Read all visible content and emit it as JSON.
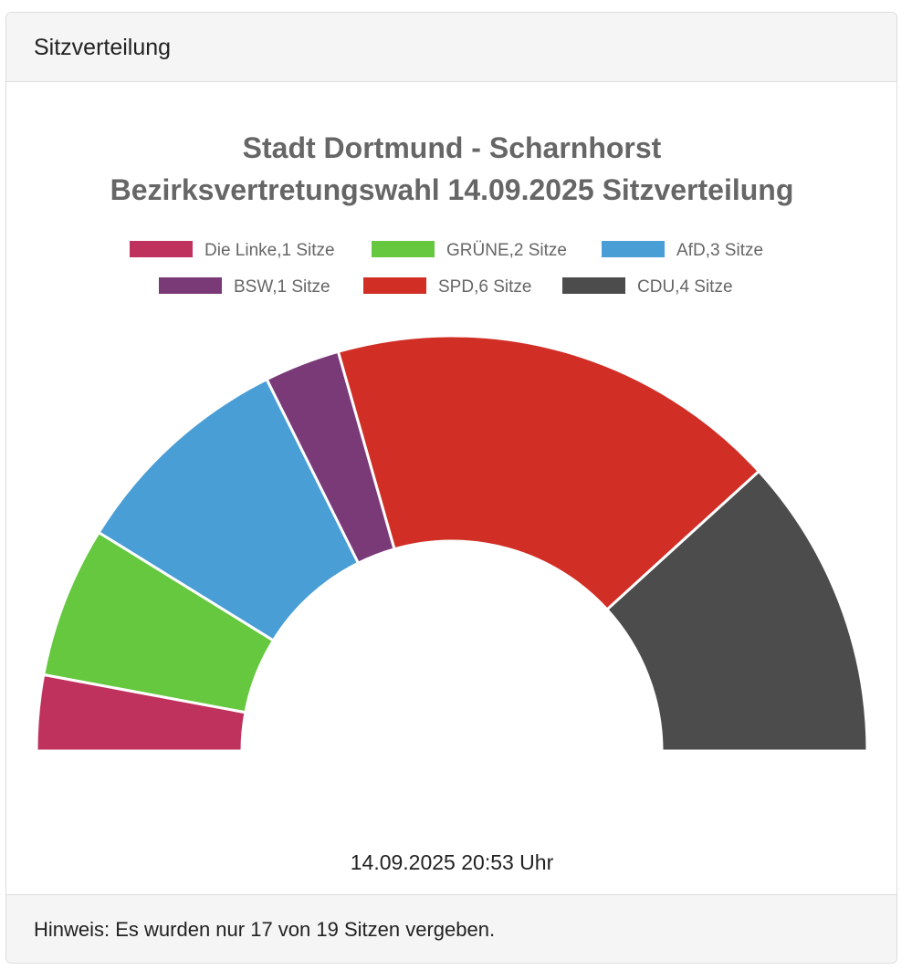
{
  "panel": {
    "heading": "Sitzverteilung",
    "footer": "Hinweis: Es wurden nur 17 von 19 Sitzen vergeben."
  },
  "chart_data": {
    "type": "pie",
    "variant": "semicircle-doughnut",
    "title_lines": [
      "Stadt Dortmund - Scharnhorst",
      "Bezirksvertretungswahl 14.09.2025 Sitzverteilung"
    ],
    "legend": {
      "placement": "top",
      "labels": [
        "Die Linke,1 Sitze",
        "GRÜNE,2 Sitze",
        "AfD,3 Sitze",
        "BSW,1 Sitze",
        "SPD,6 Sitze",
        "CDU,4 Sitze"
      ]
    },
    "categories": [
      "Die Linke",
      "GRÜNE",
      "AfD",
      "BSW",
      "SPD",
      "CDU"
    ],
    "values": [
      1,
      2,
      3,
      1,
      6,
      4
    ],
    "colors": [
      "#C0325E",
      "#66C83F",
      "#4A9ED6",
      "#7A3A78",
      "#D12E26",
      "#4C4C4C"
    ],
    "timestamp": "14.09.2025 20:53 Uhr"
  }
}
